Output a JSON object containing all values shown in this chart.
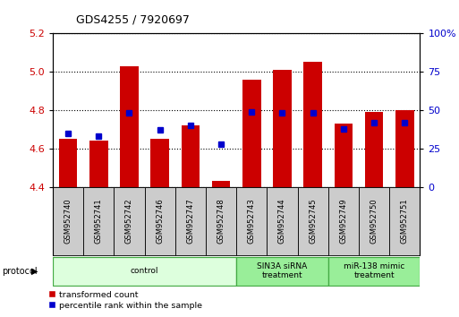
{
  "title": "GDS4255 / 7920697",
  "samples": [
    "GSM952740",
    "GSM952741",
    "GSM952742",
    "GSM952746",
    "GSM952747",
    "GSM952748",
    "GSM952743",
    "GSM952744",
    "GSM952745",
    "GSM952749",
    "GSM952750",
    "GSM952751"
  ],
  "transformed_count": [
    4.65,
    4.64,
    5.03,
    4.65,
    4.72,
    4.43,
    4.96,
    5.01,
    5.05,
    4.73,
    4.79,
    4.8
  ],
  "percentile_rank": [
    35,
    33,
    48,
    37,
    40,
    28,
    49,
    48,
    48,
    38,
    42,
    42
  ],
  "ylim_left": [
    4.4,
    5.2
  ],
  "ylim_right": [
    0,
    100
  ],
  "yticks_left": [
    4.4,
    4.6,
    4.8,
    5.0,
    5.2
  ],
  "yticks_right": [
    0,
    25,
    50,
    75,
    100
  ],
  "bar_color": "#cc0000",
  "dot_color": "#0000cc",
  "groups": [
    {
      "label": "control",
      "start": 0,
      "end": 5,
      "color": "#ddffdd",
      "border": "#44aa44"
    },
    {
      "label": "SIN3A siRNA\ntreatment",
      "start": 6,
      "end": 8,
      "color": "#99ee99",
      "border": "#44aa44"
    },
    {
      "label": "miR-138 mimic\ntreatment",
      "start": 9,
      "end": 11,
      "color": "#99ee99",
      "border": "#44aa44"
    }
  ],
  "base_value": 4.4,
  "legend_red": "transformed count",
  "legend_blue": "percentile rank within the sample",
  "protocol_label": "protocol"
}
